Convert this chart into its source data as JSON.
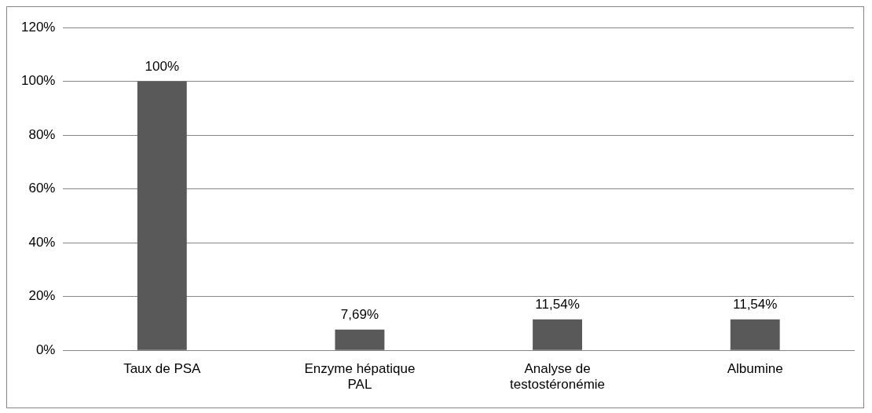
{
  "chart_data": {
    "type": "bar",
    "categories": [
      "Taux de PSA",
      "Enzyme hépatique PAL",
      "Analyse de testostéronémie",
      "Albumine"
    ],
    "values": [
      100,
      7.69,
      11.54,
      11.54
    ],
    "value_labels": [
      "100%",
      "7,69%",
      "11,54%",
      "11,54%"
    ],
    "color": "#595959",
    "ylim": [
      0,
      120
    ],
    "yticks": [
      {
        "value": 0,
        "label": "0%"
      },
      {
        "value": 20,
        "label": "20%"
      },
      {
        "value": 40,
        "label": "40%"
      },
      {
        "value": 60,
        "label": "60%"
      },
      {
        "value": 80,
        "label": "80%"
      },
      {
        "value": 100,
        "label": "100%"
      },
      {
        "value": 120,
        "label": "120%"
      }
    ],
    "grid": "y",
    "legend": false
  }
}
